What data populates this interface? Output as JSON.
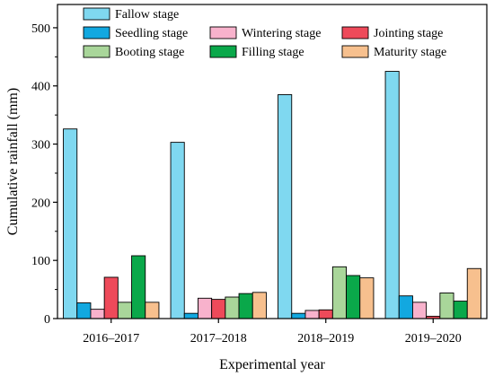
{
  "chart_data": {
    "type": "bar",
    "xlabel": "Experimental year",
    "ylabel": "Cumulative rainfall (mm)",
    "categories": [
      "2016–2017",
      "2017–2018",
      "2018–2019",
      "2019–2020"
    ],
    "ylim": [
      0,
      540
    ],
    "yticks": [
      0,
      100,
      200,
      300,
      400,
      500
    ],
    "grid": false,
    "legend": "top",
    "series": [
      {
        "name": "Fallow stage",
        "color": "#7fd8f0",
        "values": [
          326,
          303,
          385,
          425
        ]
      },
      {
        "name": "Seedling stage",
        "color": "#12a8e0",
        "values": [
          27,
          9,
          9,
          39
        ]
      },
      {
        "name": "Wintering stage",
        "color": "#f8b2cc",
        "values": [
          16,
          35,
          14,
          28
        ]
      },
      {
        "name": "Jointing stage",
        "color": "#ee4a5a",
        "values": [
          71,
          33,
          15,
          4
        ]
      },
      {
        "name": "Booting stage",
        "color": "#a9d69a",
        "values": [
          28,
          37,
          89,
          44
        ]
      },
      {
        "name": "Filling stage",
        "color": "#0aa84a",
        "values": [
          108,
          43,
          74,
          30
        ]
      },
      {
        "name": "Maturity stage",
        "color": "#f7c08e",
        "values": [
          28,
          45,
          70,
          86
        ]
      }
    ]
  }
}
